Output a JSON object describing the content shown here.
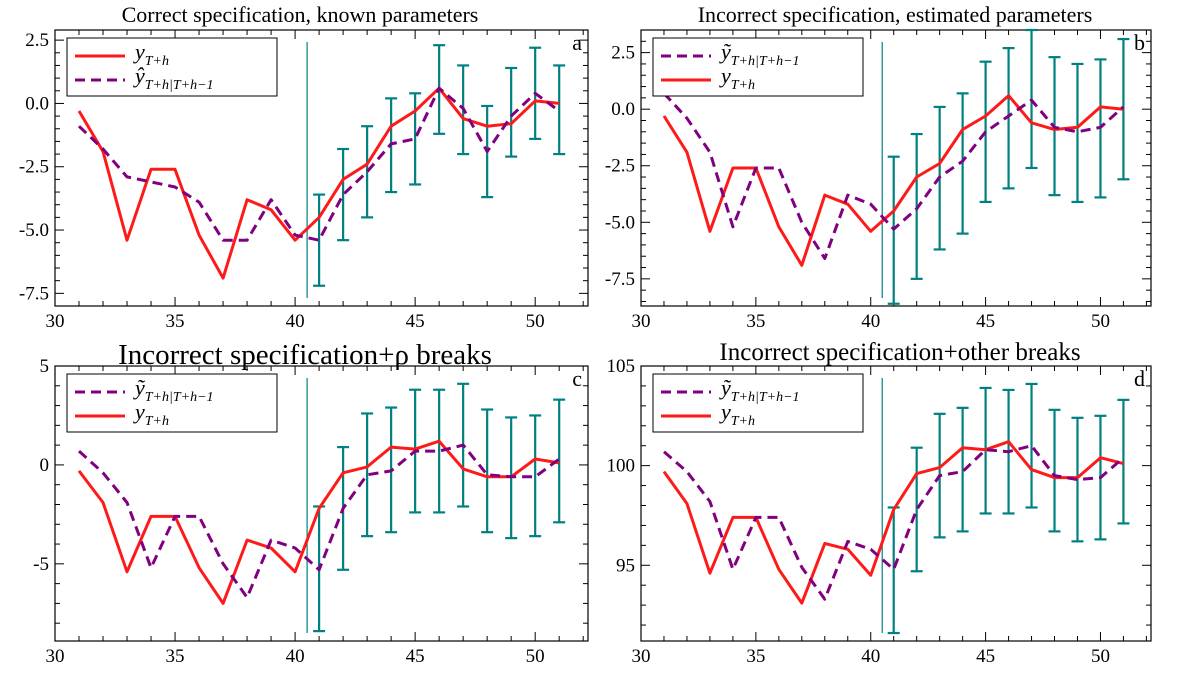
{
  "colors": {
    "actual": "#ff1a1a",
    "forecast": "#800080",
    "interval": "#008080",
    "frame": "#000000"
  },
  "chart_data": [
    {
      "type": "line",
      "panel_label": "a",
      "title": "Correct specification, known parameters",
      "xlim": [
        30,
        52.2
      ],
      "ylim": [
        -8,
        2.9
      ],
      "xticks": [
        "30",
        "35",
        "40",
        "45",
        "50"
      ],
      "yticks": [
        "2.5",
        "0.0",
        "-2.5",
        "-5.0",
        "-7.5"
      ],
      "ytick_values": [
        2.5,
        0,
        -2.5,
        -5,
        -7.5
      ],
      "forecast_origin": 40.5,
      "legend": [
        {
          "key": "actual",
          "main": "y",
          "sub": "T+h"
        },
        {
          "key": "forecast",
          "main": "ŷ",
          "sub": "T+h|T+h−1"
        }
      ],
      "x": [
        31,
        32,
        33,
        34,
        35,
        36,
        37,
        38,
        39,
        40,
        41,
        42,
        43,
        44,
        45,
        46,
        47,
        48,
        49,
        50,
        51
      ],
      "series": [
        {
          "key": "actual",
          "values": [
            -0.3,
            -1.9,
            -5.4,
            -2.6,
            -2.6,
            -5.2,
            -6.9,
            -3.8,
            -4.2,
            -5.4,
            -4.5,
            -3.0,
            -2.4,
            -0.9,
            -0.3,
            0.6,
            -0.6,
            -0.9,
            -0.8,
            0.1,
            0.0
          ]
        },
        {
          "key": "forecast",
          "values": [
            -0.9,
            -1.8,
            -2.9,
            -3.1,
            -3.3,
            -3.9,
            -5.4,
            -5.4,
            -3.8,
            -5.2,
            -5.4,
            -3.6,
            -2.7,
            -1.6,
            -1.4,
            0.6,
            -0.2,
            -1.9,
            -0.5,
            0.4,
            -0.3
          ]
        }
      ],
      "intervals": {
        "x": [
          41,
          42,
          43,
          44,
          45,
          46,
          47,
          48,
          49,
          50,
          51
        ],
        "lower": [
          -7.2,
          -5.4,
          -4.5,
          -3.5,
          -3.2,
          -1.2,
          -2.0,
          -3.7,
          -2.1,
          -1.4,
          -2.0
        ],
        "upper": [
          -3.6,
          -1.8,
          -0.9,
          0.2,
          0.4,
          2.3,
          1.5,
          -0.1,
          1.4,
          2.2,
          1.5
        ]
      }
    },
    {
      "type": "line",
      "panel_label": "b",
      "title": "Incorrect specification, estimated parameters",
      "xlim": [
        30,
        52.2
      ],
      "ylim": [
        -8.7,
        3.5
      ],
      "xticks": [
        "30",
        "35",
        "40",
        "45",
        "50"
      ],
      "yticks": [
        "2.5",
        "0.0",
        "-2.5",
        "-5.0",
        "-7.5"
      ],
      "ytick_values": [
        2.5,
        0,
        -2.5,
        -5,
        -7.5
      ],
      "forecast_origin": 40.5,
      "legend": [
        {
          "key": "forecast",
          "main": "ỹ",
          "sub": "T+h|T+h−1"
        },
        {
          "key": "actual",
          "main": "y",
          "sub": "T+h"
        }
      ],
      "x": [
        31,
        32,
        33,
        34,
        35,
        36,
        37,
        38,
        39,
        40,
        41,
        42,
        43,
        44,
        45,
        46,
        47,
        48,
        49,
        50,
        51
      ],
      "series": [
        {
          "key": "actual",
          "values": [
            -0.3,
            -1.9,
            -5.4,
            -2.6,
            -2.6,
            -5.2,
            -6.9,
            -3.8,
            -4.2,
            -5.4,
            -4.5,
            -3.0,
            -2.4,
            -0.9,
            -0.3,
            0.6,
            -0.6,
            -0.9,
            -0.8,
            0.1,
            0.0
          ]
        },
        {
          "key": "forecast",
          "values": [
            0.7,
            -0.4,
            -1.9,
            -5.2,
            -2.6,
            -2.6,
            -5.0,
            -6.6,
            -3.8,
            -4.2,
            -5.3,
            -4.4,
            -3.0,
            -2.3,
            -1.0,
            -0.3,
            0.4,
            -0.8,
            -1.0,
            -0.8,
            0.1
          ]
        }
      ],
      "intervals": {
        "x": [
          41,
          42,
          43,
          44,
          45,
          46,
          47,
          48,
          49,
          50,
          51
        ],
        "lower": [
          -8.6,
          -7.5,
          -6.2,
          -5.5,
          -4.1,
          -3.5,
          -2.6,
          -3.8,
          -4.1,
          -3.9,
          -3.1
        ],
        "upper": [
          -2.1,
          -1.1,
          0.1,
          0.7,
          2.1,
          2.7,
          3.5,
          2.3,
          2.0,
          2.2,
          3.1
        ]
      }
    },
    {
      "type": "line",
      "panel_label": "c",
      "title": "Incorrect specification+ρ breaks",
      "xlim": [
        30,
        52.2
      ],
      "ylim": [
        -8.9,
        5.0
      ],
      "xticks": [
        "30",
        "35",
        "40",
        "45",
        "50"
      ],
      "yticks": [
        "5",
        "0",
        "-5"
      ],
      "ytick_values": [
        5,
        0,
        -5
      ],
      "forecast_origin": 40.5,
      "legend": [
        {
          "key": "forecast",
          "main": "ỹ",
          "sub": "T+h|T+h−1"
        },
        {
          "key": "actual",
          "main": "y",
          "sub": "T+h"
        }
      ],
      "x": [
        31,
        32,
        33,
        34,
        35,
        36,
        37,
        38,
        39,
        40,
        41,
        42,
        43,
        44,
        45,
        46,
        47,
        48,
        49,
        50,
        51
      ],
      "series": [
        {
          "key": "actual",
          "values": [
            -0.3,
            -1.9,
            -5.4,
            -2.6,
            -2.6,
            -5.2,
            -7.0,
            -3.8,
            -4.2,
            -5.4,
            -2.2,
            -0.4,
            -0.1,
            0.9,
            0.8,
            1.2,
            -0.2,
            -0.6,
            -0.6,
            0.3,
            0.1
          ]
        },
        {
          "key": "forecast",
          "values": [
            0.7,
            -0.4,
            -1.9,
            -5.2,
            -2.6,
            -2.6,
            -5.0,
            -6.7,
            -3.8,
            -4.2,
            -5.3,
            -2.2,
            -0.5,
            -0.3,
            0.7,
            0.7,
            1.0,
            -0.5,
            -0.6,
            -0.6,
            0.3
          ]
        }
      ],
      "intervals": {
        "x": [
          41,
          42,
          43,
          44,
          45,
          46,
          47,
          48,
          49,
          50,
          51
        ],
        "lower": [
          -8.4,
          -5.3,
          -3.6,
          -3.4,
          -2.4,
          -2.4,
          -2.1,
          -3.4,
          -3.7,
          -3.6,
          -2.9
        ],
        "upper": [
          -2.1,
          0.9,
          2.6,
          2.9,
          3.8,
          3.8,
          4.1,
          2.8,
          2.4,
          2.5,
          3.3
        ]
      }
    },
    {
      "type": "line",
      "panel_label": "d",
      "title": "Incorrect specification+other breaks",
      "xlim": [
        30,
        52.2
      ],
      "ylim": [
        91.2,
        105.0
      ],
      "xticks": [
        "30",
        "35",
        "40",
        "45",
        "50"
      ],
      "yticks": [
        "105",
        "100",
        "95"
      ],
      "ytick_values": [
        105,
        100,
        95
      ],
      "forecast_origin": 40.5,
      "legend": [
        {
          "key": "forecast",
          "main": "ỹ",
          "sub": "T+h|T+h−1"
        },
        {
          "key": "actual",
          "main": "y",
          "sub": "T+h"
        }
      ],
      "x": [
        31,
        32,
        33,
        34,
        35,
        36,
        37,
        38,
        39,
        40,
        41,
        42,
        43,
        44,
        45,
        46,
        47,
        48,
        49,
        50,
        51
      ],
      "series": [
        {
          "key": "actual",
          "values": [
            99.7,
            98.1,
            94.6,
            97.4,
            97.4,
            94.8,
            93.1,
            96.1,
            95.8,
            94.5,
            97.8,
            99.6,
            99.9,
            100.9,
            100.8,
            101.2,
            99.8,
            99.4,
            99.4,
            100.4,
            100.1
          ]
        },
        {
          "key": "forecast",
          "values": [
            100.7,
            99.7,
            98.2,
            94.8,
            97.4,
            97.4,
            94.9,
            93.3,
            96.2,
            95.8,
            94.8,
            97.8,
            99.5,
            99.7,
            100.8,
            100.7,
            101.0,
            99.5,
            99.3,
            99.4,
            100.4
          ]
        }
      ],
      "intervals": {
        "x": [
          41,
          42,
          43,
          44,
          45,
          46,
          47,
          48,
          49,
          50,
          51
        ],
        "lower": [
          91.6,
          94.7,
          96.4,
          96.7,
          97.6,
          97.6,
          97.9,
          96.7,
          96.2,
          96.3,
          97.1
        ],
        "upper": [
          97.9,
          100.9,
          102.6,
          102.9,
          103.9,
          103.8,
          104.1,
          102.8,
          102.4,
          102.5,
          103.3
        ]
      }
    }
  ]
}
